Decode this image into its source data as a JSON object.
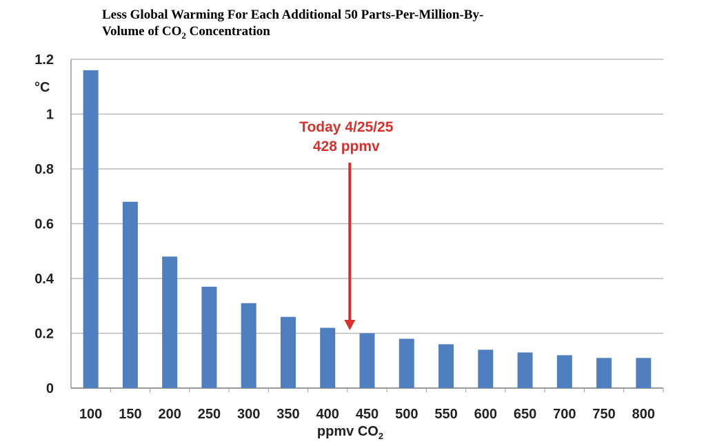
{
  "chart_data": {
    "type": "bar",
    "title_line1": "Less Global Warming For Each Additional 50 Parts-Per-Million-By-",
    "title_line2_pre": "Volume of CO",
    "title_line2_sub": "2",
    "title_line2_post": " Concentration",
    "ylabel": "°C",
    "xlabel_pre": "ppmv CO",
    "xlabel_sub": "2",
    "categories": [
      "100",
      "150",
      "200",
      "250",
      "300",
      "350",
      "400",
      "450",
      "500",
      "550",
      "600",
      "650",
      "700",
      "750",
      "800"
    ],
    "values": [
      1.16,
      0.68,
      0.48,
      0.37,
      0.31,
      0.26,
      0.22,
      0.2,
      0.18,
      0.16,
      0.14,
      0.13,
      0.12,
      0.11,
      0.11
    ],
    "yticks": [
      "0",
      "0.2",
      "0.4",
      "0.6",
      "0.8",
      "1",
      "1.2"
    ],
    "ytick_values": [
      0,
      0.2,
      0.4,
      0.6,
      0.8,
      1,
      1.2
    ],
    "ylim": [
      0,
      1.2
    ],
    "grid": true,
    "bar_color": "#4f7fbf",
    "annotation": {
      "line1": "Today 4/25/25",
      "line2": "428 ppmv",
      "x": 428,
      "color": "#d9302c"
    }
  }
}
